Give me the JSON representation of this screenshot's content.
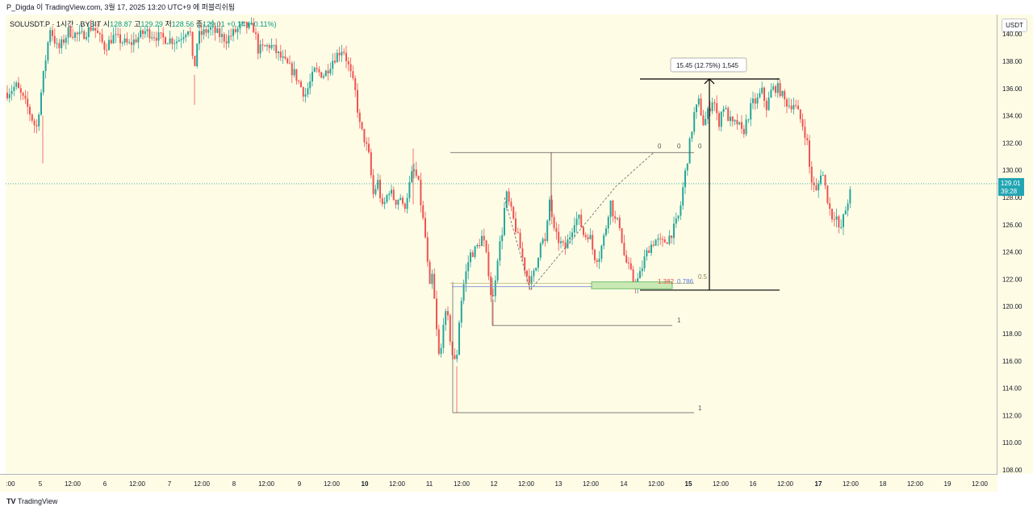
{
  "header": {
    "text": "P_Digda 이 TradingView.com, 3월 17, 2025 13:20 UTC+9 에 퍼블리쉬됨"
  },
  "symbol_line": {
    "symbol": "SOLUSDT.P · 1시간 · BYBIT",
    "open_label": "시",
    "open": "128.87",
    "high_label": "고",
    "high": "129.29",
    "low_label": "저",
    "low": "128.56",
    "close_label": "종",
    "close": "129.01",
    "change": "+0.14 (+0.11%)"
  },
  "currency_button": "USDT",
  "footer": {
    "logo_mark": "TV",
    "logo_text": "TradingView"
  },
  "colors": {
    "up": "#26a69a",
    "down": "#ef5350",
    "background": "#fffce6",
    "price_line": "#26a69a",
    "price_label_bg": "#22a6b3"
  },
  "chart_data": {
    "type": "candlestick",
    "ylim": [
      107.5,
      141.2
    ],
    "y_ticks": [
      "108.00",
      "110.00",
      "112.00",
      "114.00",
      "116.00",
      "118.00",
      "120.00",
      "122.00",
      "124.00",
      "126.00",
      "128.00",
      "130.00",
      "132.00",
      "134.00",
      "136.00",
      "138.00",
      "140.00"
    ],
    "x_ticks": [
      ":00",
      "5",
      "12:00",
      "6",
      "12:00",
      "7",
      "12:00",
      "8",
      "12:00",
      "9",
      "12:00",
      "10",
      "12:00",
      "11",
      "12:00",
      "12",
      "12:00",
      "13",
      "12:00",
      "14",
      "12:00",
      "15",
      "12:00",
      "16",
      "12:00",
      "17",
      "12:00",
      "18",
      "12:00",
      "19",
      "12:00"
    ],
    "bold_x_ticks": [
      "10",
      "15",
      "17"
    ],
    "current_price": "129.01",
    "countdown": "39:28",
    "measure_label": "15.45 (12.75%) 1,545",
    "fib_labels": [
      {
        "text": "0",
        "price": 131.3
      },
      {
        "text": "0",
        "price": 131.3
      },
      {
        "text": "0",
        "price": 131.3
      },
      {
        "text": "1",
        "price": 118.6
      },
      {
        "text": "1",
        "price": 112.2
      },
      {
        "text": "0.5",
        "price": 121.6
      },
      {
        "text": "1.382",
        "price": 121.5
      },
      {
        "text": "0.786",
        "price": 121.5
      }
    ],
    "path_keys": [
      [
        5,
        135.5
      ],
      [
        20,
        136.2
      ],
      [
        35,
        134.5
      ],
      [
        45,
        133.0
      ],
      [
        55,
        137.5
      ],
      [
        62,
        140.5
      ],
      [
        72,
        138.8
      ],
      [
        85,
        140.2
      ],
      [
        100,
        139.8
      ],
      [
        115,
        140.6
      ],
      [
        130,
        139.0
      ],
      [
        140,
        139.8
      ],
      [
        160,
        139.2
      ],
      [
        180,
        140.2
      ],
      [
        200,
        139.7
      ],
      [
        220,
        139.5
      ],
      [
        235,
        140.6
      ],
      [
        240,
        137.0
      ],
      [
        245,
        139.8
      ],
      [
        260,
        140.4
      ],
      [
        280,
        139.6
      ],
      [
        300,
        140.6
      ],
      [
        315,
        140.4
      ],
      [
        320,
        138.8
      ],
      [
        335,
        139.2
      ],
      [
        350,
        138.1
      ],
      [
        365,
        137.1
      ],
      [
        378,
        135.5
      ],
      [
        390,
        137.3
      ],
      [
        402,
        137.0
      ],
      [
        412,
        138.1
      ],
      [
        425,
        139.0
      ],
      [
        432,
        137.6
      ],
      [
        440,
        135.8
      ],
      [
        446,
        133.2
      ],
      [
        452,
        132.2
      ],
      [
        458,
        130.8
      ],
      [
        462,
        128.1
      ],
      [
        468,
        129.2
      ],
      [
        474,
        127.1
      ],
      [
        482,
        128.6
      ],
      [
        490,
        127.7
      ],
      [
        496,
        128.1
      ],
      [
        500,
        127.0
      ],
      [
        505,
        128.3
      ],
      [
        512,
        130.1
      ],
      [
        518,
        129.2
      ],
      [
        522,
        127.3
      ],
      [
        528,
        124.6
      ],
      [
        532,
        121.1
      ],
      [
        536,
        122.4
      ],
      [
        540,
        118.8
      ],
      [
        545,
        115.6
      ],
      [
        550,
        119.5
      ],
      [
        555,
        119.0
      ],
      [
        560,
        116.6
      ],
      [
        565,
        115.6
      ],
      [
        570,
        119.8
      ],
      [
        575,
        121.8
      ],
      [
        582,
        123.8
      ],
      [
        590,
        124.2
      ],
      [
        598,
        125.2
      ],
      [
        605,
        122.8
      ],
      [
        610,
        120.0
      ],
      [
        616,
        123.5
      ],
      [
        622,
        125.4
      ],
      [
        627,
        128.3
      ],
      [
        634,
        126.8
      ],
      [
        640,
        125.5
      ],
      [
        646,
        123.9
      ],
      [
        652,
        122.4
      ],
      [
        658,
        121.8
      ],
      [
        664,
        122.8
      ],
      [
        670,
        125.0
      ],
      [
        676,
        124.6
      ],
      [
        681,
        127.8
      ],
      [
        687,
        125.3
      ],
      [
        694,
        124.7
      ],
      [
        700,
        124.2
      ],
      [
        706,
        125.2
      ],
      [
        712,
        126.4
      ],
      [
        718,
        126.4
      ],
      [
        724,
        125.1
      ],
      [
        730,
        125.4
      ],
      [
        736,
        123.7
      ],
      [
        742,
        123.6
      ],
      [
        750,
        125.5
      ],
      [
        756,
        127.8
      ],
      [
        762,
        126.3
      ],
      [
        768,
        126.0
      ],
      [
        774,
        123.5
      ],
      [
        780,
        122.7
      ],
      [
        786,
        121.6
      ],
      [
        792,
        122.1
      ],
      [
        798,
        123.4
      ],
      [
        804,
        124.3
      ],
      [
        812,
        124.9
      ],
      [
        820,
        124.6
      ],
      [
        828,
        125.0
      ],
      [
        836,
        125.8
      ],
      [
        842,
        126.8
      ],
      [
        846,
        128.6
      ],
      [
        850,
        130.2
      ],
      [
        855,
        132.1
      ],
      [
        860,
        134.1
      ],
      [
        866,
        135.0
      ],
      [
        872,
        133.3
      ],
      [
        878,
        134.4
      ],
      [
        884,
        135.4
      ],
      [
        890,
        133.3
      ],
      [
        896,
        134.8
      ],
      [
        902,
        133.9
      ],
      [
        908,
        133.3
      ],
      [
        914,
        133.5
      ],
      [
        920,
        132.6
      ],
      [
        926,
        133.8
      ],
      [
        932,
        134.9
      ],
      [
        938,
        135.1
      ],
      [
        944,
        135.8
      ],
      [
        950,
        134.6
      ],
      [
        956,
        135.9
      ],
      [
        962,
        136.1
      ],
      [
        966,
        135.9
      ],
      [
        972,
        135.1
      ],
      [
        978,
        134.8
      ],
      [
        984,
        134.9
      ],
      [
        990,
        134.0
      ],
      [
        996,
        133.1
      ],
      [
        1000,
        132.1
      ],
      [
        1004,
        129.6
      ],
      [
        1008,
        128.8
      ],
      [
        1012,
        128.3
      ],
      [
        1018,
        130.2
      ],
      [
        1024,
        128.3
      ],
      [
        1030,
        126.6
      ],
      [
        1036,
        126.8
      ],
      [
        1040,
        125.3
      ],
      [
        1046,
        126.7
      ],
      [
        1052,
        128.1
      ],
      [
        1058,
        129.0
      ]
    ]
  }
}
